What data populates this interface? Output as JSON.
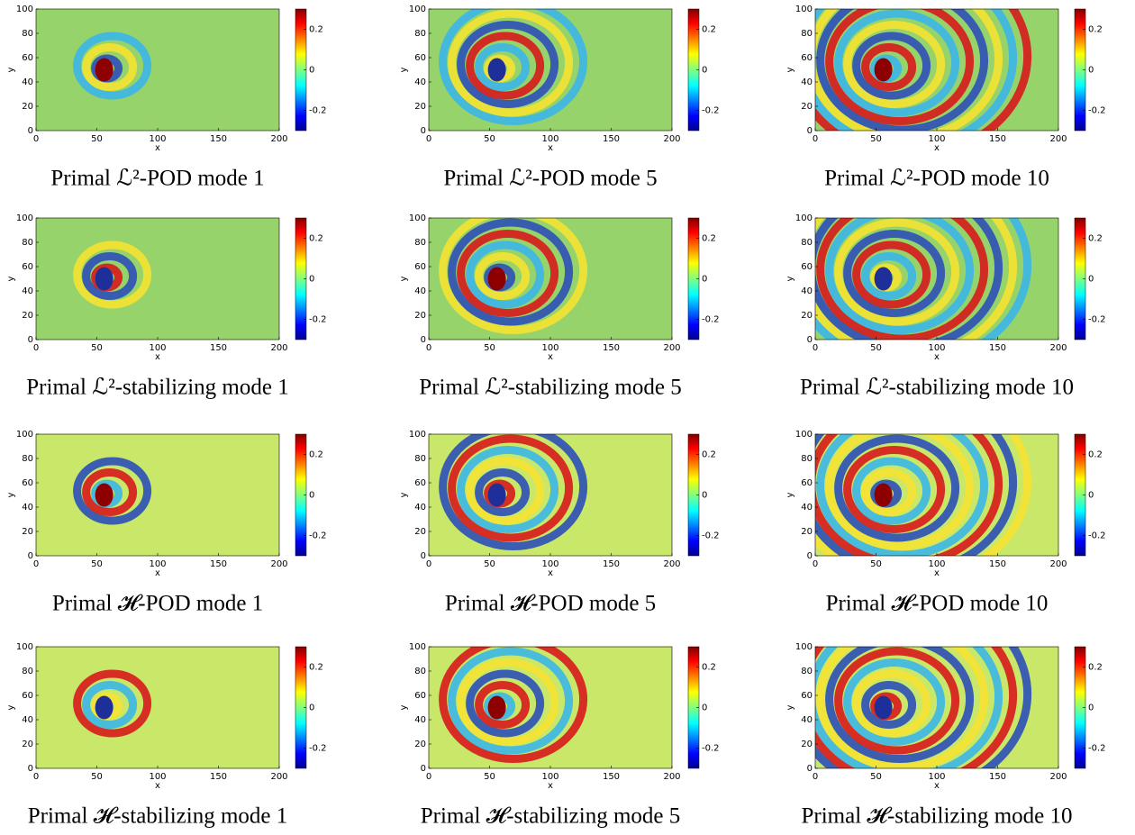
{
  "chart_data": [
    {
      "type": "heatmap",
      "title": "Primal ℒ²-POD mode 1",
      "xlabel": "x",
      "ylabel": "y",
      "xlim": [
        0,
        200
      ],
      "ylim": [
        0,
        100
      ],
      "xticks": [
        0,
        50,
        100,
        150,
        200
      ],
      "yticks": [
        0,
        20,
        40,
        60,
        80,
        100
      ],
      "clim": [
        -0.3,
        0.3
      ],
      "cticks": [
        -0.2,
        0,
        0.2
      ]
    },
    {
      "type": "heatmap",
      "title": "Primal ℒ²-POD mode 5",
      "xlabel": "x",
      "ylabel": "y",
      "xlim": [
        0,
        200
      ],
      "ylim": [
        0,
        100
      ],
      "xticks": [
        0,
        50,
        100,
        150,
        200
      ],
      "yticks": [
        0,
        20,
        40,
        60,
        80,
        100
      ],
      "clim": [
        -0.3,
        0.3
      ],
      "cticks": [
        -0.2,
        0,
        0.2
      ]
    },
    {
      "type": "heatmap",
      "title": "Primal ℒ²-POD mode 10",
      "xlabel": "x",
      "ylabel": "y",
      "xlim": [
        0,
        200
      ],
      "ylim": [
        0,
        100
      ],
      "xticks": [
        0,
        50,
        100,
        150,
        200
      ],
      "yticks": [
        0,
        20,
        40,
        60,
        80,
        100
      ],
      "clim": [
        -0.3,
        0.3
      ],
      "cticks": [
        -0.2,
        0,
        0.2
      ]
    },
    {
      "type": "heatmap",
      "title": "Primal ℒ²-stabilizing mode 1",
      "xlabel": "x",
      "ylabel": "y",
      "xlim": [
        0,
        200
      ],
      "ylim": [
        0,
        100
      ],
      "xticks": [
        0,
        50,
        100,
        150,
        200
      ],
      "yticks": [
        0,
        20,
        40,
        60,
        80,
        100
      ],
      "clim": [
        -0.3,
        0.3
      ],
      "cticks": [
        -0.2,
        0,
        0.2
      ]
    },
    {
      "type": "heatmap",
      "title": "Primal ℒ²-stabilizing mode 5",
      "xlabel": "x",
      "ylabel": "y",
      "xlim": [
        0,
        200
      ],
      "ylim": [
        0,
        100
      ],
      "xticks": [
        0,
        50,
        100,
        150,
        200
      ],
      "yticks": [
        0,
        20,
        40,
        60,
        80,
        100
      ],
      "clim": [
        -0.3,
        0.3
      ],
      "cticks": [
        -0.2,
        0,
        0.2
      ]
    },
    {
      "type": "heatmap",
      "title": "Primal ℒ²-stabilizing mode 10",
      "xlabel": "x",
      "ylabel": "y",
      "xlim": [
        0,
        200
      ],
      "ylim": [
        0,
        100
      ],
      "xticks": [
        0,
        50,
        100,
        150,
        200
      ],
      "yticks": [
        0,
        20,
        40,
        60,
        80,
        100
      ],
      "clim": [
        -0.3,
        0.3
      ],
      "cticks": [
        -0.2,
        0,
        0.2
      ]
    },
    {
      "type": "heatmap",
      "title": "Primal 𝓗-POD mode 1",
      "xlabel": "x",
      "ylabel": "y",
      "xlim": [
        0,
        200
      ],
      "ylim": [
        0,
        100
      ],
      "xticks": [
        0,
        50,
        100,
        150,
        200
      ],
      "yticks": [
        0,
        20,
        40,
        60,
        80,
        100
      ],
      "clim": [
        -0.3,
        0.3
      ],
      "cticks": [
        -0.2,
        0,
        0.2
      ]
    },
    {
      "type": "heatmap",
      "title": "Primal 𝓗-POD mode 5",
      "xlabel": "x",
      "ylabel": "y",
      "xlim": [
        0,
        200
      ],
      "ylim": [
        0,
        100
      ],
      "xticks": [
        0,
        50,
        100,
        150,
        200
      ],
      "yticks": [
        0,
        20,
        40,
        60,
        80,
        100
      ],
      "clim": [
        -0.3,
        0.3
      ],
      "cticks": [
        -0.2,
        0,
        0.2
      ]
    },
    {
      "type": "heatmap",
      "title": "Primal 𝓗-POD mode 10",
      "xlabel": "x",
      "ylabel": "y",
      "xlim": [
        0,
        200
      ],
      "ylim": [
        0,
        100
      ],
      "xticks": [
        0,
        50,
        100,
        150,
        200
      ],
      "yticks": [
        0,
        20,
        40,
        60,
        80,
        100
      ],
      "clim": [
        -0.3,
        0.3
      ],
      "cticks": [
        -0.2,
        0,
        0.2
      ]
    },
    {
      "type": "heatmap",
      "title": "Primal 𝓗-stabilizing mode 1",
      "xlabel": "x",
      "ylabel": "y",
      "xlim": [
        0,
        200
      ],
      "ylim": [
        0,
        100
      ],
      "xticks": [
        0,
        50,
        100,
        150,
        200
      ],
      "yticks": [
        0,
        20,
        40,
        60,
        80,
        100
      ],
      "clim": [
        -0.3,
        0.3
      ],
      "cticks": [
        -0.2,
        0,
        0.2
      ]
    },
    {
      "type": "heatmap",
      "title": "Primal 𝓗-stabilizing mode 5",
      "xlabel": "x",
      "ylabel": "y",
      "xlim": [
        0,
        200
      ],
      "ylim": [
        0,
        100
      ],
      "xticks": [
        0,
        50,
        100,
        150,
        200
      ],
      "yticks": [
        0,
        20,
        40,
        60,
        80,
        100
      ],
      "clim": [
        -0.3,
        0.3
      ],
      "cticks": [
        -0.2,
        0,
        0.2
      ]
    },
    {
      "type": "heatmap",
      "title": "Primal 𝓗-stabilizing mode 10",
      "xlabel": "x",
      "ylabel": "y",
      "xlim": [
        0,
        200
      ],
      "ylim": [
        0,
        100
      ],
      "xticks": [
        0,
        50,
        100,
        150,
        200
      ],
      "yticks": [
        0,
        20,
        40,
        60,
        80,
        100
      ],
      "clim": [
        -0.3,
        0.3
      ],
      "cticks": [
        -0.2,
        0,
        0.2
      ]
    }
  ]
}
